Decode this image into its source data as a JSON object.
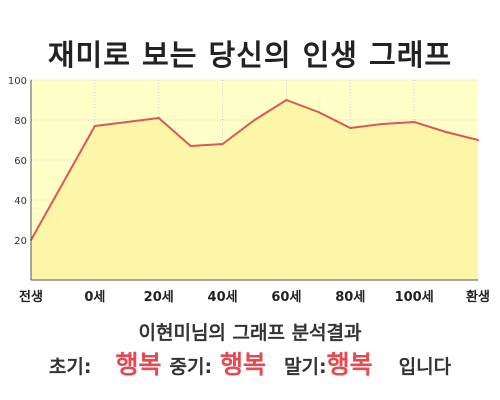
{
  "title": "재미로 보는 당신의 인생 그래프",
  "chart_data": {
    "type": "area",
    "x_tick_labels": [
      "전생",
      "0세",
      "20세",
      "40세",
      "60세",
      "80세",
      "100세",
      "환생"
    ],
    "x": [
      -10,
      0,
      10,
      15,
      20,
      25,
      30,
      35,
      40,
      45,
      50,
      55,
      60
    ],
    "values": [
      20,
      77,
      81,
      67,
      68,
      80,
      90,
      84,
      76,
      78,
      79,
      74,
      70
    ],
    "ylim": [
      0,
      100
    ],
    "yticks": [
      20,
      40,
      60,
      80,
      100
    ],
    "grid": true,
    "line_color": "#e05555",
    "fill_color": "#ffffc8"
  },
  "result": {
    "heading": "이현미님의 그래프 분석결과",
    "early_label": "초기:",
    "early_value": "행복",
    "middle_label": "중기:",
    "middle_value": "행복",
    "late_label": "말기:",
    "late_value": "행복",
    "suffix": "입니다",
    "accent_color": "#e8484e"
  }
}
